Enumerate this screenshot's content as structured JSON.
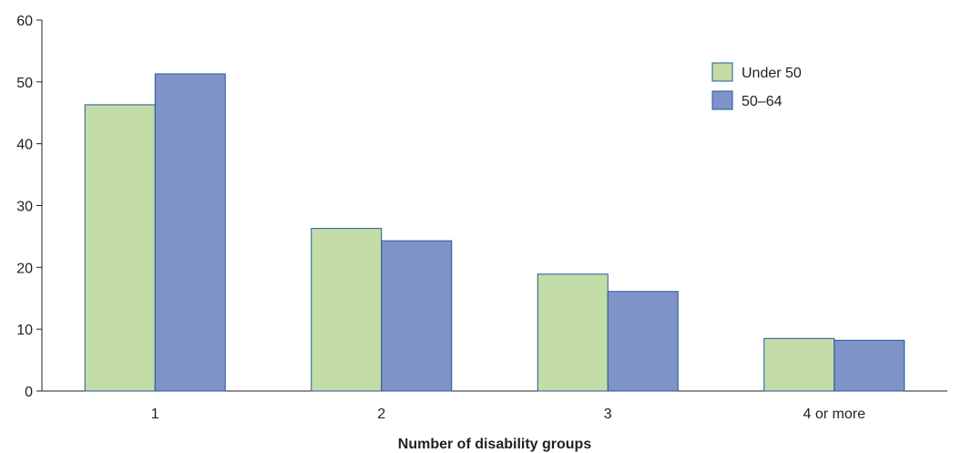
{
  "chart_data": {
    "type": "bar",
    "title": "",
    "xlabel": "Number of disability groups",
    "ylabel": "",
    "ylim": [
      0,
      60
    ],
    "yticks": [
      0,
      10,
      20,
      30,
      40,
      50,
      60
    ],
    "categories": [
      "1",
      "2",
      "3",
      "4 or more"
    ],
    "series": [
      {
        "name": "Under 50",
        "values": [
          46.3,
          26.3,
          18.9,
          8.5
        ],
        "color": "#c4dda8"
      },
      {
        "name": "50–64",
        "values": [
          51.3,
          24.3,
          16.1,
          8.2
        ],
        "color": "#8093c8"
      }
    ],
    "bar_border_color": "#1f5a96",
    "axis_color": "#231f20",
    "grid": false,
    "legend_position": "top-right"
  }
}
